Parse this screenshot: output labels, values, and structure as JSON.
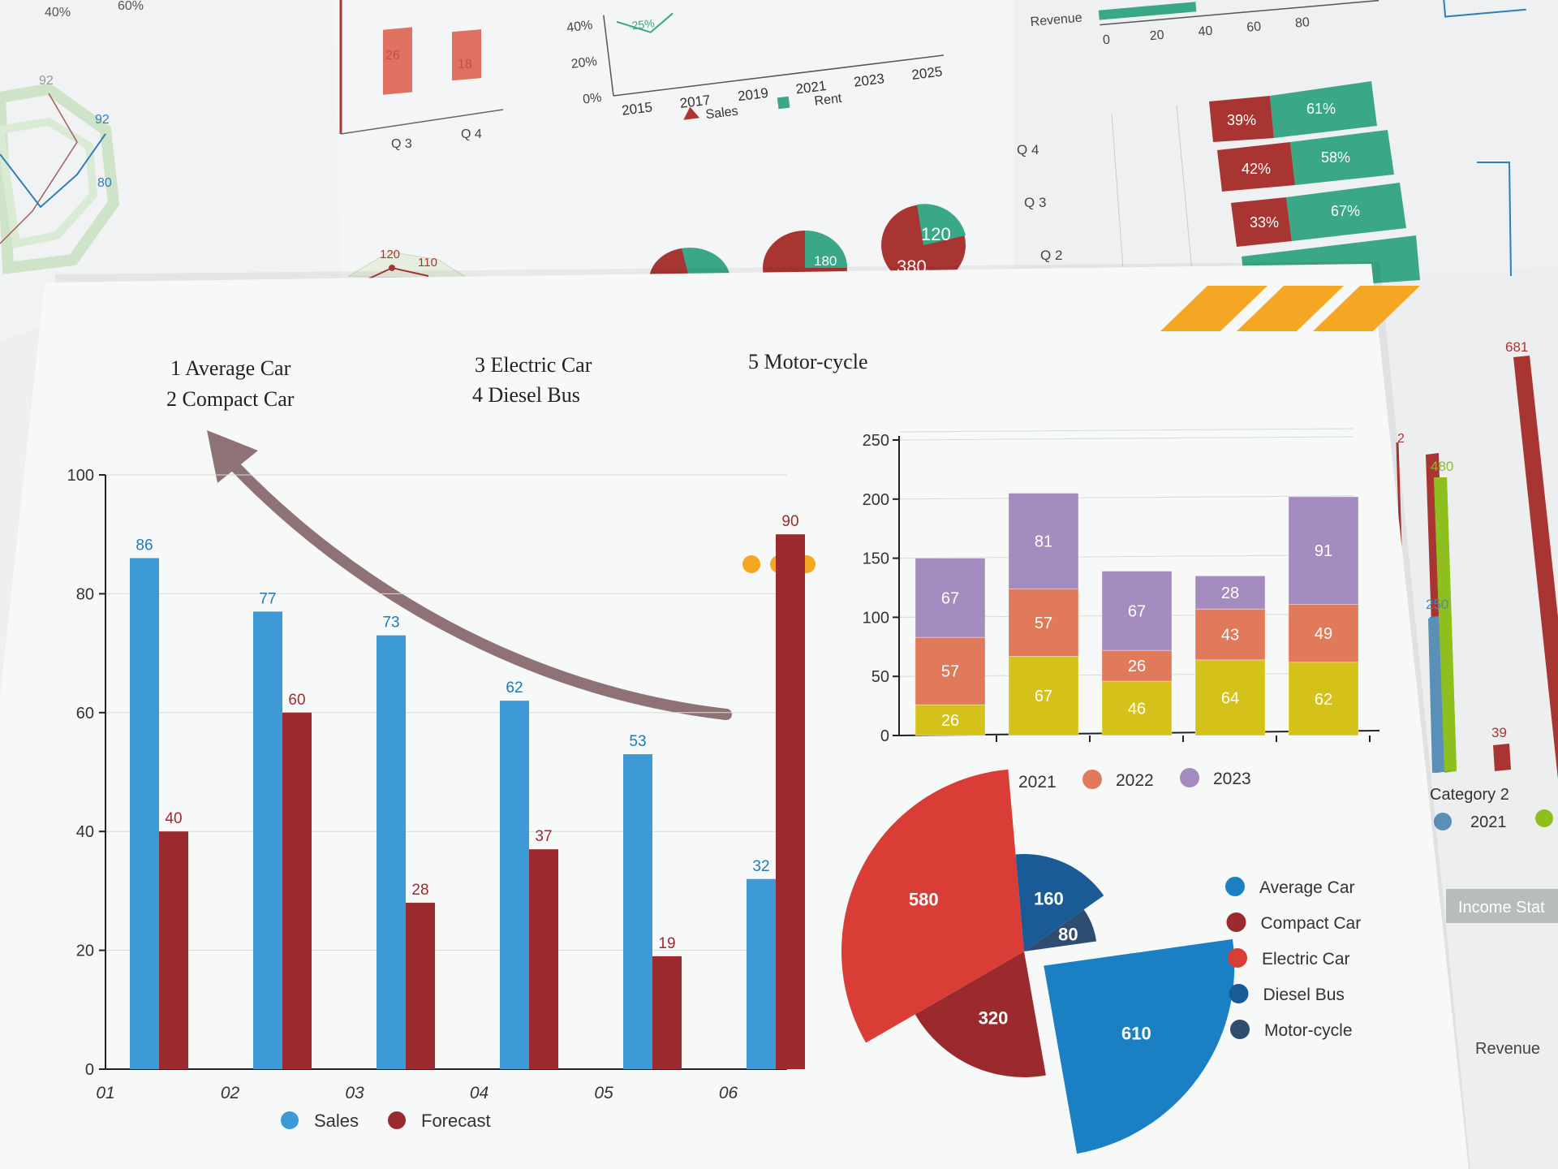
{
  "colors": {
    "sales": "#3d9ad6",
    "forecast": "#9b2a2f",
    "y2021": "#d4c21a",
    "y2022": "#e07a5a",
    "y2023": "#a48cc0",
    "average_car": "#1b7fc4",
    "compact_car": "#9b2a2f",
    "electric_car": "#d93d35",
    "diesel_bus": "#1a5a96",
    "motorcycle": "#2f4d70",
    "accent_orange": "#f5a623",
    "green": "#3aa887",
    "lime": "#8fbf1f"
  },
  "main_sheet": {
    "vehicle_list": [
      {
        "label": "1 Average Car"
      },
      {
        "label": "2 Compact Car"
      },
      {
        "label": "3 Electric Car"
      },
      {
        "label": "4 Diesel Bus"
      },
      {
        "label": "5 Motor-cycle"
      }
    ]
  },
  "chart_data": [
    {
      "id": "sales_forecast",
      "type": "bar",
      "categories": [
        "01",
        "02",
        "03",
        "04",
        "05",
        "06"
      ],
      "series": [
        {
          "name": "Sales",
          "values": [
            86,
            77,
            73,
            62,
            53,
            32
          ]
        },
        {
          "name": "Forecast",
          "values": [
            40,
            60,
            28,
            37,
            19,
            90
          ]
        }
      ],
      "ylim": [
        0,
        100
      ],
      "yticks": [
        "0",
        "20",
        "40",
        "60",
        "80",
        "100"
      ],
      "legend": "bottom"
    },
    {
      "id": "stacked_years",
      "type": "bar",
      "stacked": true,
      "categories": [
        "",
        "",
        "",
        "",
        ""
      ],
      "series": [
        {
          "name": "2021",
          "values": [
            26,
            67,
            46,
            64,
            62
          ]
        },
        {
          "name": "2022",
          "values": [
            57,
            57,
            26,
            43,
            49
          ]
        },
        {
          "name": "2023",
          "values": [
            67,
            81,
            67,
            28,
            91
          ]
        }
      ],
      "ylim": [
        0,
        250
      ],
      "yticks": [
        "0",
        "50",
        "100",
        "150",
        "200",
        "250"
      ],
      "legend": "bottom"
    },
    {
      "id": "vehicle_pie",
      "type": "pie",
      "slices": [
        {
          "label": "Average Car",
          "value": 610
        },
        {
          "label": "Compact Car",
          "value": 320
        },
        {
          "label": "Electric Car",
          "value": 580
        },
        {
          "label": "Diesel Bus",
          "value": 160
        },
        {
          "label": "Motor-cycle",
          "value": 80
        }
      ],
      "legend": "right"
    }
  ],
  "background": {
    "top_left": {
      "ticks": [
        "40%",
        "60%"
      ],
      "radar_labels": [
        "92",
        "92",
        "80"
      ]
    },
    "top_bars": {
      "values": [
        "26",
        "18"
      ],
      "categories": [
        "Q 3",
        "Q 4"
      ]
    },
    "top_line": {
      "yticks": [
        "0%",
        "20%",
        "40%"
      ],
      "xticks": [
        "2015",
        "2017",
        "2019",
        "2021",
        "2023",
        "2025"
      ],
      "point_label": "25%",
      "legend": [
        "Sales",
        "Rent"
      ]
    },
    "top_right_axis": {
      "label": "Revenue",
      "ticks": [
        "0",
        "20",
        "40",
        "60",
        "80"
      ]
    },
    "mini_pies": [
      {
        "labels": [
          "180"
        ]
      },
      {
        "labels": [
          "120",
          "380"
        ]
      }
    ],
    "small_radar": {
      "labels": [
        "120",
        "110"
      ]
    },
    "h_stacked": {
      "categories": [
        "Q 4",
        "Q 3",
        "Q 2"
      ],
      "rows": [
        {
          "left": "39%",
          "right": "61%"
        },
        {
          "left": "42%",
          "right": "58%"
        },
        {
          "left": "33%",
          "right": "67%"
        }
      ]
    },
    "right_bars": {
      "values": [
        "681",
        "480",
        "250",
        "39"
      ],
      "category_label": "Category 2",
      "legend": [
        "2021"
      ],
      "tab_label": "Income Stat",
      "revenue_label": "Revenue"
    }
  }
}
